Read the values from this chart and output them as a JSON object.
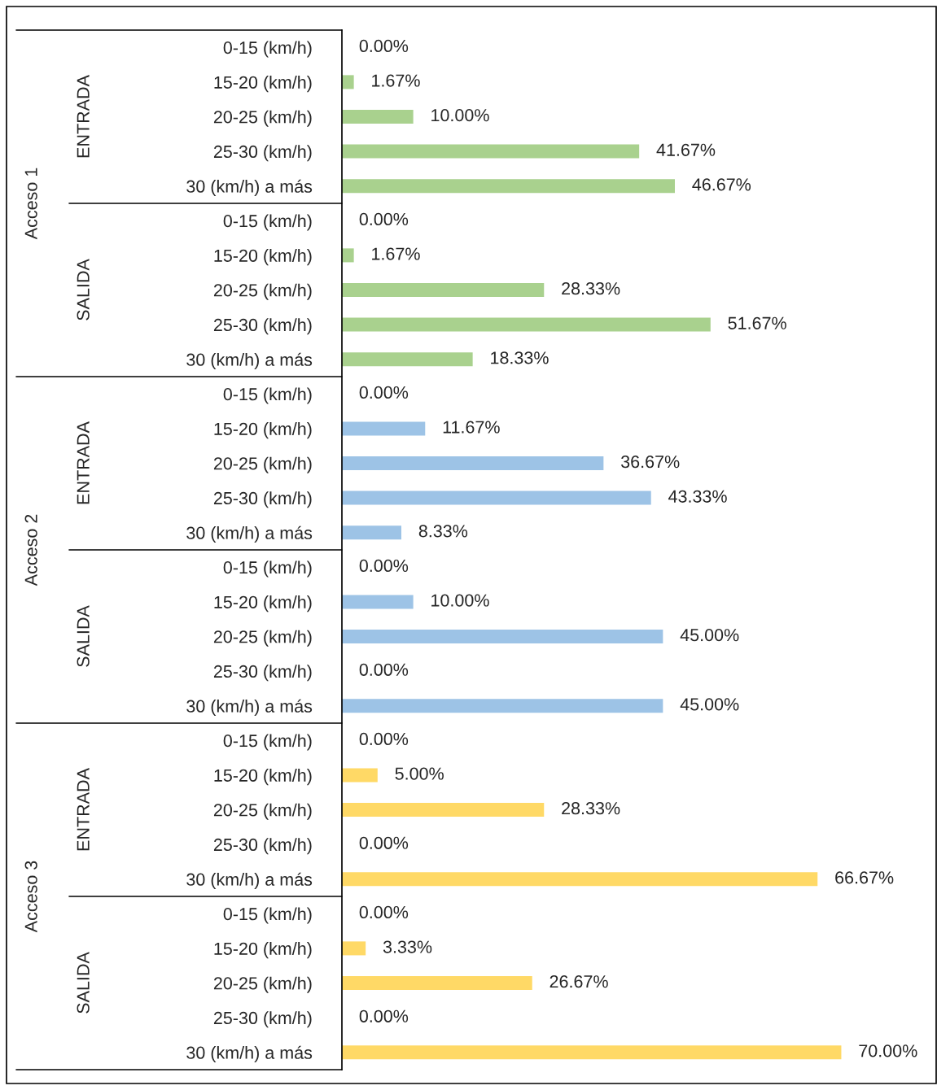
{
  "chart_data": {
    "type": "bar",
    "orientation": "horizontal",
    "categories": [
      "0-15 (km/h)",
      "15-20 (km/h)",
      "20-25 (km/h)",
      "25-30 (km/h)",
      "30 (km/h) a más",
      "0-15 (km/h)",
      "15-20 (km/h)",
      "20-25 (km/h)",
      "25-30 (km/h)",
      "30 (km/h) a más",
      "0-15 (km/h)",
      "15-20 (km/h)",
      "20-25 (km/h)",
      "25-30 (km/h)",
      "30 (km/h) a más",
      "0-15 (km/h)",
      "15-20 (km/h)",
      "20-25 (km/h)",
      "25-30 (km/h)",
      "30 (km/h) a más",
      "0-15 (km/h)",
      "15-20 (km/h)",
      "20-25 (km/h)",
      "25-30 (km/h)",
      "30 (km/h) a más",
      "0-15 (km/h)",
      "15-20 (km/h)",
      "20-25 (km/h)",
      "25-30 (km/h)",
      "30 (km/h) a más"
    ],
    "values": [
      0,
      1.67,
      10,
      41.67,
      46.67,
      0,
      1.67,
      28.33,
      51.67,
      18.33,
      0,
      11.67,
      36.67,
      43.33,
      8.33,
      0,
      10,
      45,
      0,
      45,
      0,
      5,
      28.33,
      0,
      66.67,
      0,
      3.33,
      26.67,
      0,
      70
    ],
    "value_labels": [
      "0.00%",
      "1.67%",
      "10.00%",
      "41.67%",
      "46.67%",
      "0.00%",
      "1.67%",
      "28.33%",
      "51.67%",
      "18.33%",
      "0.00%",
      "11.67%",
      "36.67%",
      "43.33%",
      "8.33%",
      "0.00%",
      "10.00%",
      "45.00%",
      "0.00%",
      "45.00%",
      "0.00%",
      "5.00%",
      "28.33%",
      "0.00%",
      "66.67%",
      "0.00%",
      "3.33%",
      "26.67%",
      "0.00%",
      "70.00%"
    ],
    "colors": [
      "#a9d18e",
      "#a9d18e",
      "#a9d18e",
      "#a9d18e",
      "#a9d18e",
      "#a9d18e",
      "#a9d18e",
      "#a9d18e",
      "#a9d18e",
      "#a9d18e",
      "#9dc3e6",
      "#9dc3e6",
      "#9dc3e6",
      "#9dc3e6",
      "#9dc3e6",
      "#9dc3e6",
      "#9dc3e6",
      "#9dc3e6",
      "#9dc3e6",
      "#9dc3e6",
      "#ffd966",
      "#ffd966",
      "#ffd966",
      "#ffd966",
      "#ffd966",
      "#ffd966",
      "#ffd966",
      "#ffd966",
      "#ffd966",
      "#ffd966"
    ],
    "annotations": [
      "Acceso 1",
      "ENTRADA",
      "SALIDA",
      "Acceso 2",
      "ENTRADA",
      "SALIDA",
      "Acceso 3",
      "ENTRADA",
      "SALIDA"
    ],
    "grid": false,
    "legend": false
  }
}
